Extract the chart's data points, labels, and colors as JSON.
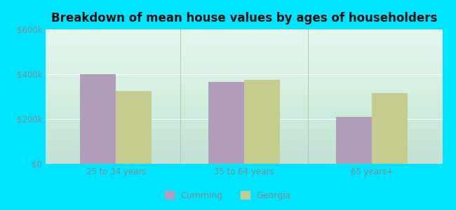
{
  "title": "Breakdown of mean house values by ages of householders",
  "categories": [
    "25 to 34 years",
    "35 to 64 years",
    "65 years+"
  ],
  "cumming_values": [
    400000,
    365000,
    210000
  ],
  "georgia_values": [
    325000,
    375000,
    315000
  ],
  "cumming_color": "#b39dbd",
  "georgia_color": "#c5cc8e",
  "background_outer": "#00e5ff",
  "background_inner": "#dff5ec",
  "ylim": [
    0,
    600000
  ],
  "yticks": [
    0,
    200000,
    400000,
    600000
  ],
  "ytick_labels": [
    "$0",
    "$200k",
    "$400k",
    "$600k"
  ],
  "legend_labels": [
    "Cumming",
    "Georgia"
  ],
  "bar_width": 0.28,
  "title_fontsize": 12,
  "tick_fontsize": 8.5,
  "legend_fontsize": 9,
  "tick_color": "#888888",
  "title_color": "#111111"
}
